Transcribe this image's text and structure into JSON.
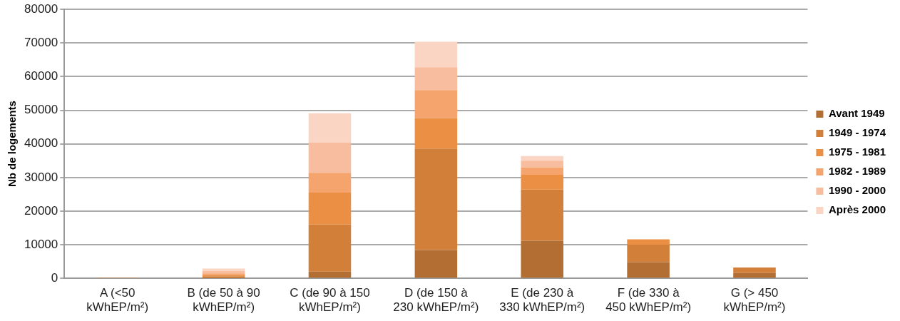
{
  "chart_data": {
    "type": "bar",
    "stacked": true,
    "ylabel": "Nb de logements",
    "categories": [
      "A (<50 kWhEP/m²)",
      "B (de 50 à 90 kWhEP/m²)",
      "C (de 90 à 150 kWhEP/m²)",
      "D (de 150 à 230 kWhEP/m²)",
      "E (de 230 à 330 kWhEP/m²)",
      "F (de 330 à 450 kWhEP/m²)",
      "G (> 450 kWhEP/m²)"
    ],
    "series": [
      {
        "name": "Avant 1949",
        "color": "#b36e33",
        "values": [
          0,
          100,
          2000,
          8400,
          11200,
          4800,
          1600
        ]
      },
      {
        "name": "1949 - 1974",
        "color": "#d27f3a",
        "values": [
          100,
          500,
          14000,
          30200,
          15200,
          5200,
          1600
        ]
      },
      {
        "name": "1975 - 1981",
        "color": "#ea8f43",
        "values": [
          0,
          400,
          9500,
          9100,
          4400,
          1600,
          0
        ]
      },
      {
        "name": "1982 - 1989",
        "color": "#f5a46e",
        "values": [
          0,
          500,
          5900,
          8300,
          2200,
          0,
          0
        ]
      },
      {
        "name": "1990 - 2000",
        "color": "#f8bd9e",
        "values": [
          0,
          700,
          9000,
          6800,
          2000,
          0,
          0
        ]
      },
      {
        "name": "Après 2000",
        "color": "#fad5c4",
        "values": [
          0,
          700,
          8700,
          7600,
          1400,
          0,
          0
        ]
      }
    ],
    "ylim": [
      0,
      80000
    ],
    "yticks": [
      0,
      10000,
      20000,
      30000,
      40000,
      50000,
      60000,
      70000,
      80000
    ],
    "grid": "y",
    "legend": "right"
  }
}
